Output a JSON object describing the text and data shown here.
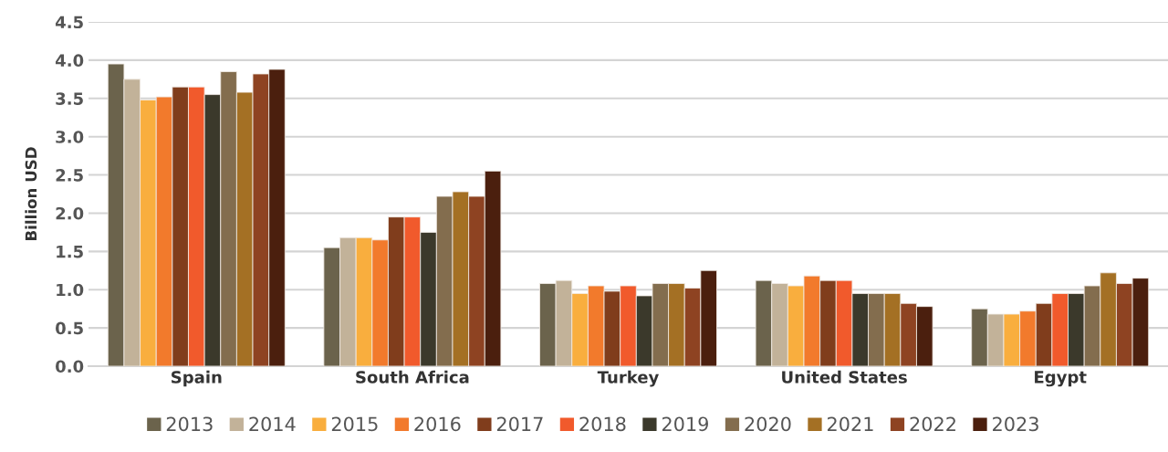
{
  "chart_data": {
    "type": "bar",
    "ylabel": "Billion USD",
    "categories": [
      "Spain",
      "South Africa",
      "Turkey",
      "United States",
      "Egypt"
    ],
    "series": [
      {
        "name": "2013",
        "color": "#6b634c",
        "values": [
          3.95,
          1.55,
          1.08,
          1.12,
          0.75
        ]
      },
      {
        "name": "2014",
        "color": "#c2b299",
        "values": [
          3.75,
          1.68,
          1.12,
          1.08,
          0.68
        ]
      },
      {
        "name": "2015",
        "color": "#f9ae3e",
        "values": [
          3.48,
          1.68,
          0.95,
          1.05,
          0.68
        ]
      },
      {
        "name": "2016",
        "color": "#f27a2c",
        "values": [
          3.52,
          1.65,
          1.05,
          1.18,
          0.72
        ]
      },
      {
        "name": "2017",
        "color": "#803d1c",
        "values": [
          3.65,
          1.95,
          0.98,
          1.12,
          0.82
        ]
      },
      {
        "name": "2018",
        "color": "#f15a2c",
        "values": [
          3.65,
          1.95,
          1.05,
          1.12,
          0.95
        ]
      },
      {
        "name": "2019",
        "color": "#3b392b",
        "values": [
          3.55,
          1.75,
          0.92,
          0.95,
          0.95
        ]
      },
      {
        "name": "2020",
        "color": "#836d4e",
        "values": [
          3.85,
          2.22,
          1.08,
          0.95,
          1.05
        ]
      },
      {
        "name": "2021",
        "color": "#a47024",
        "values": [
          3.58,
          2.28,
          1.08,
          0.95,
          1.22
        ]
      },
      {
        "name": "2022",
        "color": "#8e4322",
        "values": [
          3.82,
          2.22,
          1.02,
          0.82,
          1.08
        ]
      },
      {
        "name": "2023",
        "color": "#4b1f0e",
        "values": [
          3.88,
          2.55,
          1.25,
          0.78,
          1.15
        ]
      }
    ],
    "ylim": [
      0,
      4.5
    ],
    "yticks": [
      {
        "value": 0,
        "label": "0.0"
      },
      {
        "value": 0.5,
        "label": "0.5"
      },
      {
        "value": 1,
        "label": "1.0"
      },
      {
        "value": 1.5,
        "label": "1.5"
      },
      {
        "value": 2,
        "label": "2.0"
      },
      {
        "value": 2.5,
        "label": "2.5"
      },
      {
        "value": 3,
        "label": "3.0"
      },
      {
        "value": 3.5,
        "label": "3.5"
      },
      {
        "value": 4,
        "label": "4.0"
      },
      {
        "value": 4.5,
        "label": "4.5"
      }
    ],
    "grid": "y",
    "legend": "bottom"
  }
}
